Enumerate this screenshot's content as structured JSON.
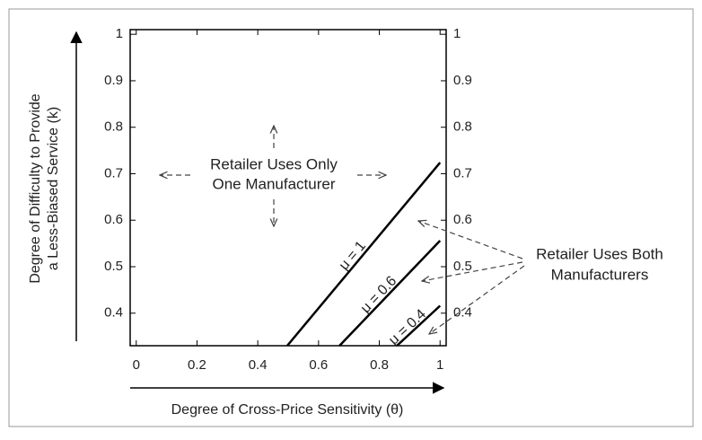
{
  "chart_data": {
    "type": "line",
    "xlabel": "Degree of Cross-Price Sensitivity (θ)",
    "ylabel": [
      "Degree of Difficulty to Provide",
      "a Less-Biased Service (k)"
    ],
    "xlim": [
      -0.02,
      1.02
    ],
    "xticks": [
      0,
      0.2,
      0.4,
      0.6,
      0.8,
      1
    ],
    "ylim": [
      0.33,
      1.01
    ],
    "yticks": [
      0.4,
      0.5,
      0.6,
      0.7,
      0.8,
      0.9,
      1
    ],
    "series": [
      {
        "name": "μ = 1",
        "color": "#000000",
        "x": [
          0.497,
          1
        ],
        "values": [
          0.33,
          0.724
        ]
      },
      {
        "name": "μ = 0.6",
        "color": "#000000",
        "x": [
          0.669,
          1
        ],
        "values": [
          0.33,
          0.556
        ]
      },
      {
        "name": "μ = 0.4",
        "color": "#000000",
        "x": [
          0.858,
          1
        ],
        "values": [
          0.33,
          0.416
        ]
      }
    ],
    "annotations": {
      "only_one": [
        "Retailer Uses Only",
        "One Manufacturer"
      ],
      "both": [
        "Retailer Uses Both",
        "Manufacturers"
      ]
    }
  }
}
